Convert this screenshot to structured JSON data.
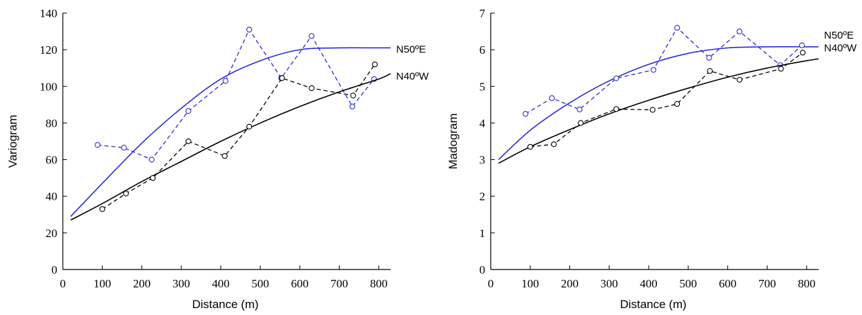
{
  "chart_data": [
    {
      "type": "line",
      "xlabel": "Distance (m)",
      "ylabel": "Variogram",
      "xlim": [
        0,
        830
      ],
      "ylim": [
        0,
        140
      ],
      "xticks": [
        0,
        100,
        200,
        300,
        400,
        500,
        600,
        700,
        800
      ],
      "yticks": [
        0,
        20,
        40,
        60,
        80,
        100,
        120,
        140
      ],
      "grid": false,
      "series": [
        {
          "name": "N50ºE",
          "color": "#2b2bd6",
          "experimental": {
            "x": [
              88,
              155,
              225,
              318,
              412,
              472,
              553,
              630,
              733,
              788
            ],
            "y": [
              68,
              66.5,
              60,
              86.5,
              103,
              131,
              104.5,
              127.5,
              89,
              104
            ]
          },
          "model": {
            "x": [
              20,
              100,
              200,
              300,
              400,
              500,
              600,
              700,
              800,
              830
            ],
            "y": [
              29,
              47,
              69,
              88,
              104,
              114,
              120,
              121,
              121,
              121
            ]
          }
        },
        {
          "name": "N40ºW",
          "color": "#000000",
          "experimental": {
            "x": [
              100,
              160,
              228,
              318,
              410,
              472,
              555,
              630,
              735,
              790
            ],
            "y": [
              33,
              41.5,
              50,
              70,
              62,
              78,
              104.5,
              99,
              95,
              112
            ]
          },
          "model": {
            "x": [
              20,
              100,
              200,
              300,
              400,
              500,
              600,
              700,
              800,
              830
            ],
            "y": [
              27,
              36,
              48,
              59,
              70,
              80,
              89,
              97,
              104,
              107
            ]
          }
        }
      ]
    },
    {
      "type": "line",
      "xlabel": "Distance (m)",
      "ylabel": "Madogram",
      "xlim": [
        0,
        830
      ],
      "ylim": [
        0,
        7
      ],
      "xticks": [
        0,
        100,
        200,
        300,
        400,
        500,
        600,
        700,
        800
      ],
      "yticks": [
        0,
        1,
        2,
        3,
        4,
        5,
        6,
        7
      ],
      "grid": false,
      "series": [
        {
          "name": "N50ºE",
          "color": "#2b2bd6",
          "experimental": {
            "x": [
              88,
              155,
              225,
              318,
              412,
              472,
              553,
              630,
              733,
              788
            ],
            "y": [
              4.25,
              4.68,
              4.37,
              5.22,
              5.45,
              6.6,
              5.78,
              6.5,
              5.58,
              6.12
            ]
          },
          "model": {
            "x": [
              20,
              100,
              200,
              300,
              400,
              500,
              600,
              700,
              800,
              830
            ],
            "y": [
              3.0,
              3.8,
              4.55,
              5.15,
              5.6,
              5.9,
              6.05,
              6.08,
              6.08,
              6.08
            ]
          }
        },
        {
          "name": "N40ºW",
          "color": "#000000",
          "experimental": {
            "x": [
              100,
              160,
              228,
              318,
              410,
              472,
              555,
              630,
              735,
              790
            ],
            "y": [
              3.35,
              3.42,
              4.0,
              4.38,
              4.36,
              4.52,
              5.42,
              5.18,
              5.48,
              5.92
            ]
          },
          "model": {
            "x": [
              20,
              100,
              200,
              300,
              400,
              500,
              600,
              700,
              800,
              830
            ],
            "y": [
              2.9,
              3.35,
              3.82,
              4.25,
              4.62,
              4.95,
              5.25,
              5.5,
              5.7,
              5.75
            ]
          }
        }
      ]
    }
  ]
}
